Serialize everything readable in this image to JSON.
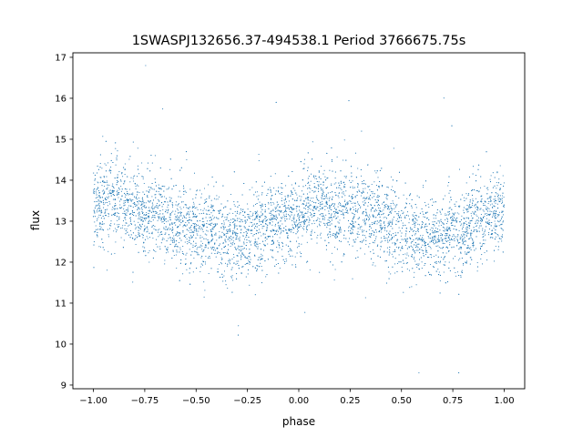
{
  "chart_data": {
    "type": "scatter",
    "title": "1SWASPJ132656.37-494538.1 Period 3766675.75s",
    "xlabel": "phase",
    "ylabel": "flux",
    "xlim": [
      -1.1,
      1.1
    ],
    "ylim": [
      8.91,
      17.11
    ],
    "xticks": [
      -1.0,
      -0.75,
      -0.5,
      -0.25,
      0.0,
      0.25,
      0.5,
      0.75,
      1.0
    ],
    "xtick_labels": [
      "−1.00",
      "−0.75",
      "−0.50",
      "−0.25",
      "0.00",
      "0.25",
      "0.50",
      "0.75",
      "1.00"
    ],
    "yticks": [
      9,
      10,
      11,
      12,
      13,
      14,
      15,
      16,
      17
    ],
    "ytick_labels": [
      "9",
      "10",
      "11",
      "12",
      "13",
      "14",
      "15",
      "16",
      "17"
    ],
    "grid": false,
    "marker_color": "#1f77b4",
    "series": [
      {
        "name": "flux",
        "description_of_points": "dense cloud of light-curve points folded over phase, scatter ~0.5 around the mean profile with sparse outliers between 9.3 and 16.8",
        "mean_profile": {
          "phase": [
            -1.0,
            -0.9,
            -0.8,
            -0.7,
            -0.6,
            -0.5,
            -0.4,
            -0.3,
            -0.2,
            -0.1,
            0.0,
            0.1,
            0.2,
            0.3,
            0.4,
            0.5,
            0.6,
            0.7,
            0.8,
            0.9,
            1.0
          ],
          "flux": [
            13.4,
            13.5,
            13.3,
            13.2,
            13.0,
            12.8,
            12.7,
            12.6,
            12.8,
            12.9,
            13.2,
            13.4,
            13.2,
            13.3,
            13.0,
            12.8,
            12.6,
            12.6,
            12.8,
            13.0,
            13.3
          ]
        },
        "spread_std": 0.5,
        "point_count": 6000
      }
    ]
  }
}
